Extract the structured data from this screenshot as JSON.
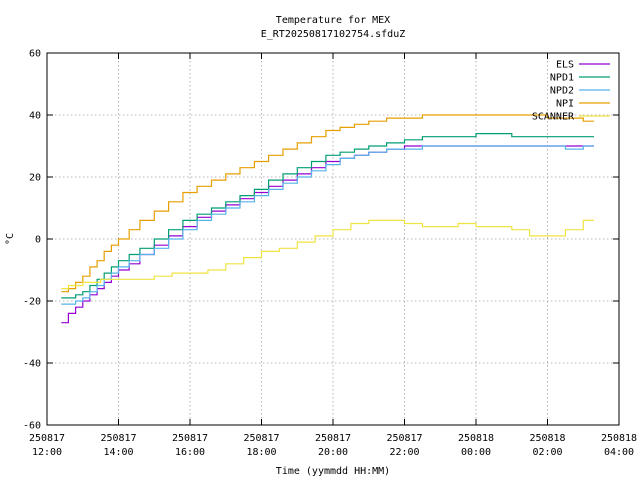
{
  "chart_data": {
    "type": "line",
    "title": "Temperature for MEX",
    "subtitle": "E_RT20250817102754.sfduZ",
    "xlabel": "Time (yymmdd HH:MM)",
    "ylabel": "°C",
    "ylim": [
      -60,
      60
    ],
    "yticks": [
      -60,
      -40,
      -20,
      0,
      20,
      40,
      60
    ],
    "xlim_hours": [
      12,
      28
    ],
    "xticks": [
      {
        "hour": 12,
        "date": "250817",
        "time": "12:00"
      },
      {
        "hour": 14,
        "date": "250817",
        "time": "14:00"
      },
      {
        "hour": 16,
        "date": "250817",
        "time": "16:00"
      },
      {
        "hour": 18,
        "date": "250817",
        "time": "18:00"
      },
      {
        "hour": 20,
        "date": "250817",
        "time": "20:00"
      },
      {
        "hour": 22,
        "date": "250817",
        "time": "22:00"
      },
      {
        "hour": 24,
        "date": "250818",
        "time": "00:00"
      },
      {
        "hour": 26,
        "date": "250818",
        "time": "02:00"
      },
      {
        "hour": 28,
        "date": "250818",
        "time": "04:00"
      }
    ],
    "grid": true,
    "legend_position": "top-right",
    "series": [
      {
        "name": "ELS",
        "color": "#9400d3",
        "x": [
          12.4,
          12.6,
          12.8,
          13.0,
          13.2,
          13.4,
          13.6,
          13.8,
          14.0,
          14.3,
          14.6,
          15.0,
          15.4,
          15.8,
          16.2,
          16.6,
          17.0,
          17.4,
          17.8,
          18.2,
          18.6,
          19.0,
          19.4,
          19.8,
          20.2,
          20.6,
          21.0,
          21.5,
          22.0,
          22.5,
          23.0,
          23.5,
          24.0,
          24.5,
          25.0,
          25.5,
          26.0,
          26.5,
          27.0,
          27.3
        ],
        "y": [
          -27,
          -24,
          -22,
          -20,
          -18,
          -16,
          -14,
          -12,
          -10,
          -8,
          -5,
          -2,
          1,
          4,
          7,
          9,
          11,
          13,
          15,
          17,
          19,
          21,
          23,
          25,
          26,
          27,
          28,
          29,
          30,
          30,
          30,
          30,
          30,
          30,
          30,
          30,
          30,
          30,
          30,
          30
        ]
      },
      {
        "name": "NPD1",
        "color": "#009e73",
        "x": [
          12.4,
          12.6,
          12.8,
          13.0,
          13.2,
          13.4,
          13.6,
          13.8,
          14.0,
          14.3,
          14.6,
          15.0,
          15.4,
          15.8,
          16.2,
          16.6,
          17.0,
          17.4,
          17.8,
          18.2,
          18.6,
          19.0,
          19.4,
          19.8,
          20.2,
          20.6,
          21.0,
          21.5,
          22.0,
          22.5,
          23.0,
          23.5,
          24.0,
          24.5,
          25.0,
          25.5,
          26.0,
          26.5,
          27.0,
          27.3
        ],
        "y": [
          -19,
          -19,
          -18,
          -17,
          -15,
          -13,
          -11,
          -9,
          -7,
          -5,
          -3,
          0,
          3,
          6,
          8,
          10,
          12,
          14,
          16,
          19,
          21,
          23,
          25,
          27,
          28,
          29,
          30,
          31,
          32,
          33,
          33,
          33,
          34,
          34,
          33,
          33,
          33,
          33,
          33,
          33
        ]
      },
      {
        "name": "NPD2",
        "color": "#56b4e9",
        "x": [
          12.4,
          12.6,
          12.8,
          13.0,
          13.2,
          13.4,
          13.6,
          13.8,
          14.0,
          14.3,
          14.6,
          15.0,
          15.4,
          15.8,
          16.2,
          16.6,
          17.0,
          17.4,
          17.8,
          18.2,
          18.6,
          19.0,
          19.4,
          19.8,
          20.2,
          20.6,
          21.0,
          21.5,
          22.0,
          22.5,
          23.0,
          23.5,
          24.0,
          24.5,
          25.0,
          25.5,
          26.0,
          26.5,
          27.0,
          27.3
        ],
        "y": [
          -21,
          -21,
          -20,
          -19,
          -17,
          -15,
          -13,
          -11,
          -9,
          -7,
          -5,
          -3,
          0,
          3,
          6,
          8,
          10,
          12,
          14,
          16,
          18,
          20,
          22,
          24,
          26,
          27,
          28,
          29,
          29,
          30,
          30,
          30,
          30,
          30,
          30,
          30,
          30,
          29,
          30,
          30
        ]
      },
      {
        "name": "NPI",
        "color": "#e69f00",
        "x": [
          12.4,
          12.6,
          12.8,
          13.0,
          13.2,
          13.4,
          13.6,
          13.8,
          14.0,
          14.3,
          14.6,
          15.0,
          15.4,
          15.8,
          16.2,
          16.6,
          17.0,
          17.4,
          17.8,
          18.2,
          18.6,
          19.0,
          19.4,
          19.8,
          20.2,
          20.6,
          21.0,
          21.5,
          22.0,
          22.5,
          23.0,
          23.5,
          24.0,
          24.5,
          25.0,
          25.5,
          26.0,
          26.5,
          27.0,
          27.3
        ],
        "y": [
          -17,
          -16,
          -14,
          -12,
          -9,
          -7,
          -4,
          -2,
          0,
          3,
          6,
          9,
          12,
          15,
          17,
          19,
          21,
          23,
          25,
          27,
          29,
          31,
          33,
          35,
          36,
          37,
          38,
          39,
          39,
          40,
          40,
          40,
          40,
          40,
          40,
          40,
          39,
          39,
          38,
          38
        ]
      },
      {
        "name": "SCANNER",
        "color": "#f0e442",
        "x": [
          12.4,
          12.6,
          12.8,
          13.0,
          13.2,
          13.5,
          14.0,
          14.5,
          15.0,
          15.5,
          16.0,
          16.5,
          17.0,
          17.5,
          18.0,
          18.5,
          19.0,
          19.5,
          20.0,
          20.5,
          21.0,
          21.5,
          22.0,
          22.5,
          23.0,
          23.5,
          24.0,
          24.5,
          25.0,
          25.5,
          26.0,
          26.5,
          27.0,
          27.3
        ],
        "y": [
          -16,
          -15,
          -15,
          -14,
          -14,
          -13,
          -13,
          -13,
          -12,
          -11,
          -11,
          -10,
          -8,
          -6,
          -4,
          -3,
          -1,
          1,
          3,
          5,
          6,
          6,
          5,
          4,
          4,
          5,
          4,
          4,
          3,
          1,
          1,
          3,
          6,
          6
        ]
      }
    ]
  }
}
